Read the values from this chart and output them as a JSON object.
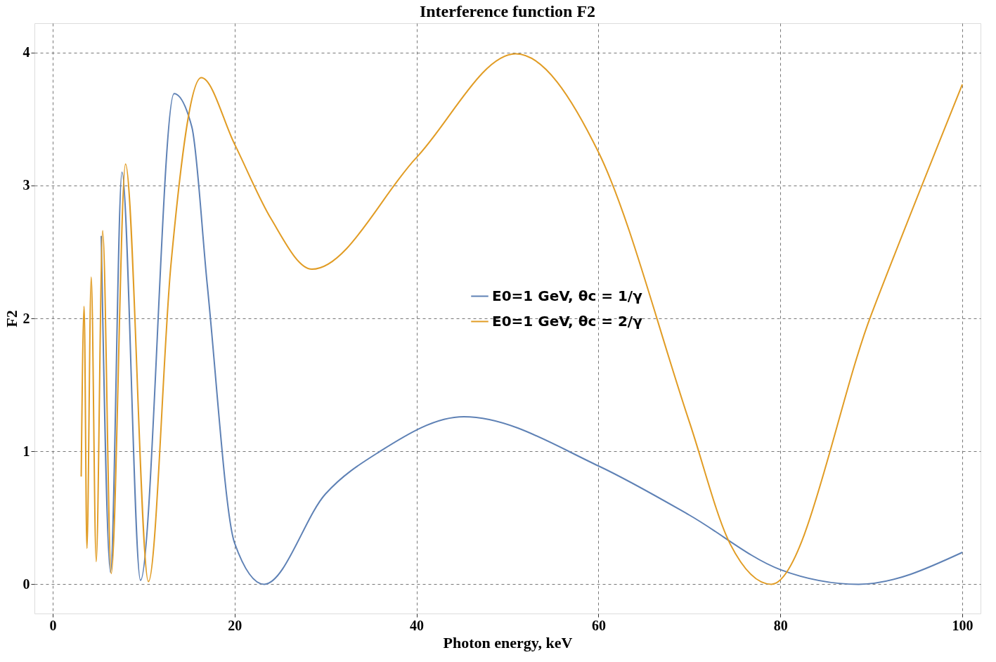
{
  "chart_data": {
    "type": "line",
    "title": "Interference function F2",
    "xlabel": "Photon energy, keV",
    "ylabel": "F2",
    "xlim": [
      -2,
      102
    ],
    "ylim": [
      -0.22,
      4.22
    ],
    "xticks": [
      0,
      20,
      40,
      60,
      80,
      100
    ],
    "yticks": [
      0,
      1,
      2,
      3,
      4
    ],
    "grid": true,
    "legend": "right",
    "line_style": "solid",
    "marker": "none",
    "series": [
      {
        "name": "E0=1 GeV, θc = 1/γ",
        "color": "#5e81b5",
        "x": [
          5.34,
          6.36,
          7.62,
          9.66,
          13.35,
          15.3,
          17,
          20,
          23.25,
          30,
          36,
          45.2,
          60,
          70,
          80,
          88.6,
          100
        ],
        "values": [
          2.62,
          0.09,
          3.1,
          0.03,
          3.69,
          3.44,
          2.25,
          0.31,
          0,
          0.68,
          1.0,
          1.26,
          0.89,
          0.52,
          0.11,
          0,
          0.24
        ]
      },
      {
        "name": "E0=1 GeV, θc = 2/γ",
        "color": "#e19c24",
        "x": [
          3.14,
          3.46,
          3.77,
          4.24,
          4.79,
          5.5,
          6.44,
          8.01,
          10.53,
          13,
          16.34,
          20,
          24,
          28.5,
          40,
          50.9,
          60,
          70,
          74.5,
          79,
          90,
          100
        ],
        "values": [
          0.81,
          2.09,
          0.27,
          2.31,
          0.17,
          2.66,
          0.08,
          3.16,
          0.02,
          2.4,
          3.81,
          3.31,
          2.75,
          2.37,
          3.21,
          3.99,
          3.25,
          1.22,
          0.3,
          0,
          2.03,
          3.76
        ]
      }
    ]
  }
}
